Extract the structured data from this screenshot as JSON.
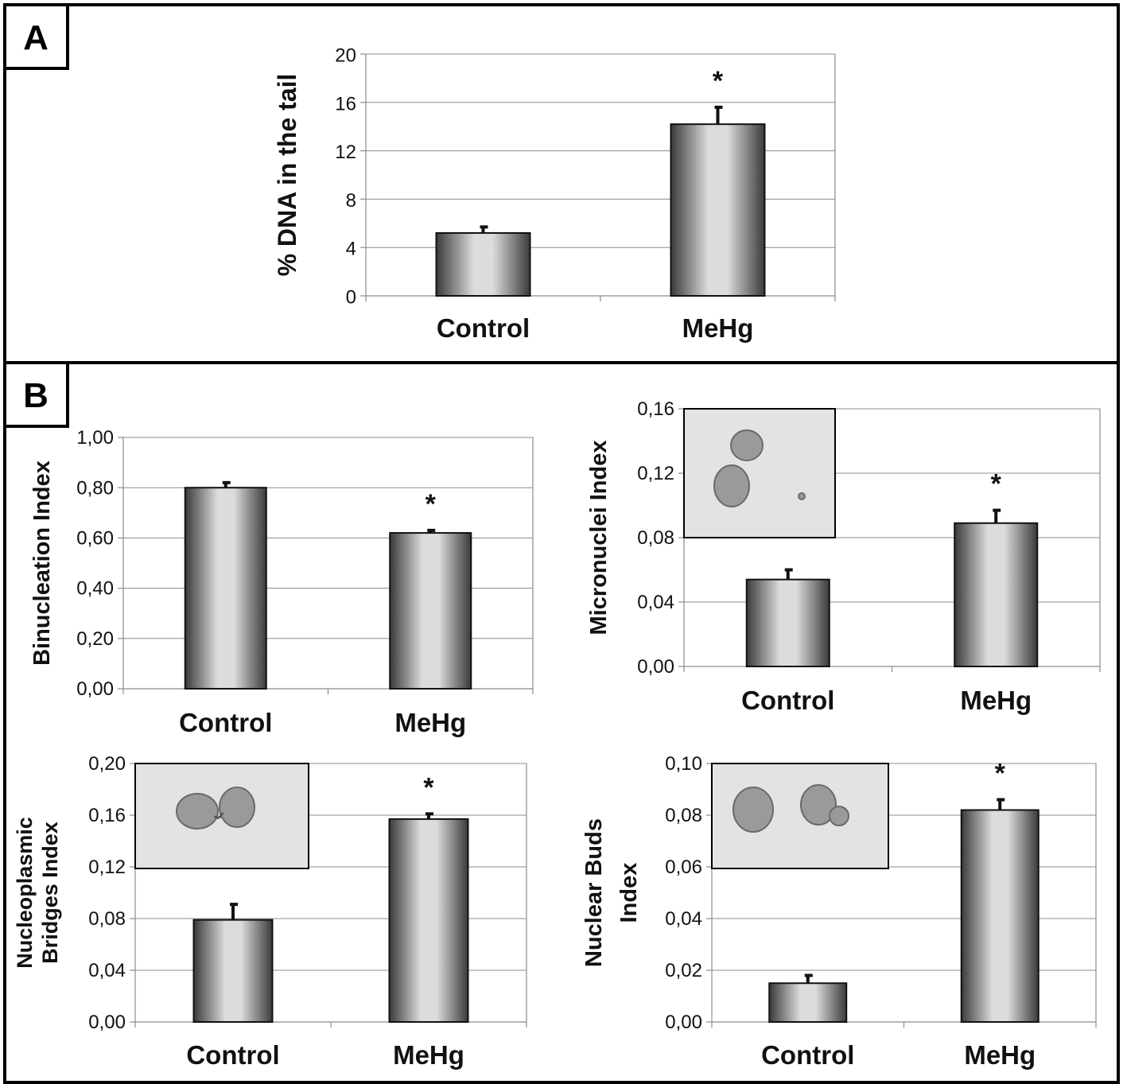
{
  "panels": {
    "a_letter": "A",
    "b_letter": "B"
  },
  "colors": {
    "bar_dark": "#3a3a3a",
    "bar_light": "#dcdcdc",
    "grid": "#8c8c8c",
    "inset_background": "#e3e3e3",
    "cell": "#9a9a9a"
  },
  "chart_data": [
    {
      "type": "bar",
      "panel": "A",
      "categories": [
        "Control",
        "MeHg"
      ],
      "values": [
        5.2,
        14.2
      ],
      "error": [
        0.5,
        1.4
      ],
      "significance": [
        "",
        "*"
      ],
      "ylabel": "% DNA in the tail",
      "ylim": [
        0,
        20
      ],
      "yticks": [
        "0",
        "4",
        "8",
        "12",
        "16",
        "20"
      ],
      "grid": true
    },
    {
      "type": "bar",
      "panel": "B",
      "categories": [
        "Control",
        "MeHg"
      ],
      "values": [
        0.8,
        0.62
      ],
      "error": [
        0.02,
        0.01
      ],
      "significance": [
        "",
        "*"
      ],
      "ylabel": "Binucleation Index",
      "ylim": [
        0,
        1
      ],
      "yticks": [
        "0,00",
        "0,20",
        "0,40",
        "0,60",
        "0,80",
        "1,00"
      ],
      "grid": true
    },
    {
      "type": "bar",
      "panel": "B",
      "categories": [
        "Control",
        "MeHg"
      ],
      "values": [
        0.054,
        0.089
      ],
      "error": [
        0.006,
        0.008
      ],
      "significance": [
        "",
        "*"
      ],
      "ylabel": "Micronuclei Index",
      "ylim": [
        0,
        0.16
      ],
      "yticks": [
        "0,00",
        "0,04",
        "0,08",
        "0,12",
        "0,16"
      ],
      "grid": true,
      "inset": "micrograph"
    },
    {
      "type": "bar",
      "panel": "B",
      "categories": [
        "Control",
        "MeHg"
      ],
      "values": [
        0.079,
        0.157
      ],
      "error": [
        0.012,
        0.004
      ],
      "significance": [
        "",
        "*"
      ],
      "ylabel": "Nucleoplasmic\nBridges Index",
      "ylim": [
        0,
        0.2
      ],
      "yticks": [
        "0,00",
        "0,04",
        "0,08",
        "0,12",
        "0,16",
        "0,20"
      ],
      "grid": true,
      "inset": "micrograph"
    },
    {
      "type": "bar",
      "panel": "B",
      "categories": [
        "Control",
        "MeHg"
      ],
      "values": [
        0.015,
        0.082
      ],
      "error": [
        0.003,
        0.004
      ],
      "significance": [
        "",
        "*"
      ],
      "ylabel": "Nuclear Buds\nIndex",
      "ylim": [
        0,
        0.1
      ],
      "yticks": [
        "0,00",
        "0,02",
        "0,04",
        "0,06",
        "0,08",
        "0,10"
      ],
      "grid": true,
      "inset": "micrograph"
    }
  ]
}
